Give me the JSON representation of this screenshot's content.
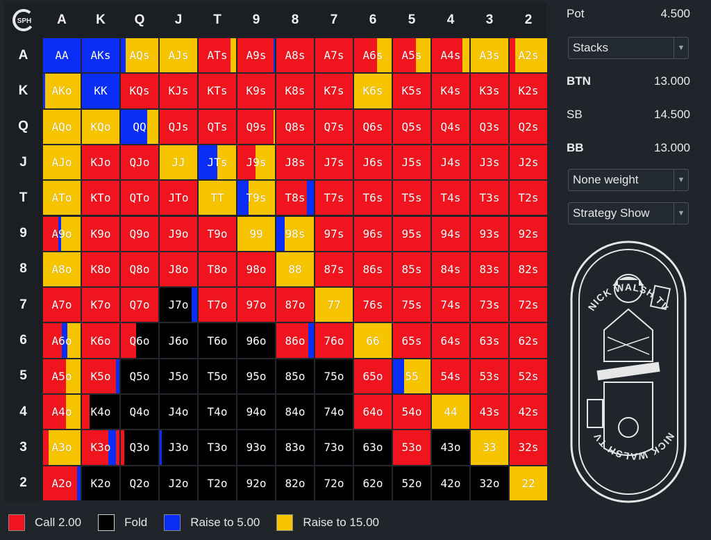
{
  "ranks": [
    "A",
    "K",
    "Q",
    "J",
    "T",
    "9",
    "8",
    "7",
    "6",
    "5",
    "4",
    "3",
    "2"
  ],
  "colors": {
    "call": "#f0141e",
    "fold": "#000000",
    "raise5": "#0a2ef5",
    "raise15": "#f7c500"
  },
  "grid": [
    [
      [
        "b",
        1
      ],
      [
        "b",
        1
      ],
      [
        "b",
        0.13,
        "y",
        0.87
      ],
      [
        "y",
        1
      ],
      [
        "r",
        0.85,
        "y",
        0.15
      ],
      [
        "r",
        0.97,
        "b",
        0.03
      ],
      [
        "r",
        1
      ],
      [
        "r",
        1
      ],
      [
        "r",
        0.62,
        "y",
        0.38
      ],
      [
        "r",
        0.62,
        "y",
        0.38
      ],
      [
        "r",
        0.82,
        "y",
        0.18
      ],
      [
        "y",
        1
      ],
      [
        "r",
        0.15,
        "y",
        0.85
      ]
    ],
    [
      [
        "b",
        0.05,
        "y",
        0.95
      ],
      [
        "b",
        1
      ],
      [
        "r",
        1
      ],
      [
        "r",
        1
      ],
      [
        "r",
        1
      ],
      [
        "r",
        1
      ],
      [
        "r",
        1
      ],
      [
        "r",
        1
      ],
      [
        "y",
        1
      ],
      [
        "r",
        1
      ],
      [
        "r",
        1
      ],
      [
        "r",
        1
      ],
      [
        "r",
        1
      ]
    ],
    [
      [
        "y",
        1
      ],
      [
        "y",
        1
      ],
      [
        "b",
        0.7,
        "y",
        0.3
      ],
      [
        "r",
        1
      ],
      [
        "r",
        1
      ],
      [
        "r",
        0.97,
        "y",
        0.03
      ],
      [
        "r",
        1
      ],
      [
        "r",
        1
      ],
      [
        "r",
        1
      ],
      [
        "r",
        1
      ],
      [
        "r",
        1
      ],
      [
        "r",
        1
      ],
      [
        "r",
        1
      ]
    ],
    [
      [
        "y",
        1
      ],
      [
        "r",
        1
      ],
      [
        "r",
        1
      ],
      [
        "y",
        1
      ],
      [
        "b",
        0.5,
        "y",
        0.5
      ],
      [
        "r",
        0.48,
        "y",
        0.52
      ],
      [
        "r",
        1
      ],
      [
        "r",
        1
      ],
      [
        "r",
        1
      ],
      [
        "r",
        1
      ],
      [
        "r",
        1
      ],
      [
        "r",
        1
      ],
      [
        "r",
        1
      ]
    ],
    [
      [
        "y",
        1
      ],
      [
        "r",
        1
      ],
      [
        "r",
        1
      ],
      [
        "r",
        1
      ],
      [
        "y",
        1
      ],
      [
        "b",
        0.3,
        "y",
        0.7
      ],
      [
        "r",
        0.82,
        "b",
        0.18
      ],
      [
        "r",
        1
      ],
      [
        "r",
        1
      ],
      [
        "r",
        1
      ],
      [
        "r",
        1
      ],
      [
        "r",
        1
      ],
      [
        "r",
        1
      ]
    ],
    [
      [
        "r",
        0.4,
        "b",
        0.08,
        "y",
        0.52
      ],
      [
        "r",
        1
      ],
      [
        "r",
        1
      ],
      [
        "r",
        1
      ],
      [
        "r",
        1
      ],
      [
        "y",
        1
      ],
      [
        "b",
        0.22,
        "y",
        0.78
      ],
      [
        "r",
        1
      ],
      [
        "r",
        1
      ],
      [
        "r",
        1
      ],
      [
        "r",
        1
      ],
      [
        "r",
        1
      ],
      [
        "r",
        1
      ]
    ],
    [
      [
        "y",
        1
      ],
      [
        "r",
        1
      ],
      [
        "r",
        1
      ],
      [
        "r",
        1
      ],
      [
        "r",
        1
      ],
      [
        "r",
        1
      ],
      [
        "y",
        1
      ],
      [
        "r",
        1
      ],
      [
        "r",
        1
      ],
      [
        "r",
        1
      ],
      [
        "r",
        1
      ],
      [
        "r",
        1
      ],
      [
        "r",
        1
      ]
    ],
    [
      [
        "r",
        1
      ],
      [
        "r",
        1
      ],
      [
        "r",
        1
      ],
      [
        "k",
        0.85,
        "b",
        0.15
      ],
      [
        "r",
        1
      ],
      [
        "r",
        1
      ],
      [
        "r",
        1
      ],
      [
        "y",
        1
      ],
      [
        "r",
        1
      ],
      [
        "r",
        1
      ],
      [
        "r",
        1
      ],
      [
        "r",
        1
      ],
      [
        "r",
        1
      ]
    ],
    [
      [
        "r",
        0.5,
        "b",
        0.15,
        "y",
        0.35
      ],
      [
        "r",
        1
      ],
      [
        "r",
        0.4,
        "k",
        0.6
      ],
      [
        "k",
        1
      ],
      [
        "k",
        1
      ],
      [
        "k",
        1
      ],
      [
        "r",
        0.85,
        "b",
        0.15
      ],
      [
        "r",
        1
      ],
      [
        "y",
        1
      ],
      [
        "r",
        1
      ],
      [
        "r",
        1
      ],
      [
        "r",
        1
      ],
      [
        "r",
        1
      ]
    ],
    [
      [
        "r",
        0.62,
        "y",
        0.38
      ],
      [
        "r",
        0.9,
        "b",
        0.1
      ],
      [
        "k",
        1
      ],
      [
        "k",
        1
      ],
      [
        "k",
        1
      ],
      [
        "k",
        1
      ],
      [
        "k",
        1
      ],
      [
        "k",
        1
      ],
      [
        "r",
        1
      ],
      [
        "b",
        0.3,
        "y",
        0.7
      ],
      [
        "r",
        1
      ],
      [
        "r",
        1
      ],
      [
        "r",
        1
      ]
    ],
    [
      [
        "r",
        0.62,
        "y",
        0.38
      ],
      [
        "r",
        0.2,
        "k",
        0.8
      ],
      [
        "k",
        1
      ],
      [
        "k",
        1
      ],
      [
        "k",
        1
      ],
      [
        "k",
        1
      ],
      [
        "k",
        1
      ],
      [
        "k",
        1
      ],
      [
        "r",
        1
      ],
      [
        "r",
        1
      ],
      [
        "y",
        1
      ],
      [
        "r",
        1
      ],
      [
        "r",
        1
      ]
    ],
    [
      [
        "r",
        0.15,
        "y",
        0.85
      ],
      [
        "r",
        0.7,
        "b",
        0.2,
        "r",
        0.1
      ],
      [
        "r",
        0.1,
        "k",
        0.9
      ],
      [
        "b",
        0.05,
        "k",
        0.95
      ],
      [
        "k",
        1
      ],
      [
        "k",
        1
      ],
      [
        "k",
        1
      ],
      [
        "k",
        1
      ],
      [
        "k",
        1
      ],
      [
        "r",
        1
      ],
      [
        "k",
        1
      ],
      [
        "y",
        1
      ],
      [
        "r",
        1
      ]
    ],
    [
      [
        "r",
        0.9,
        "b",
        0.1
      ],
      [
        "k",
        1
      ],
      [
        "k",
        1
      ],
      [
        "k",
        1
      ],
      [
        "k",
        1
      ],
      [
        "k",
        1
      ],
      [
        "k",
        1
      ],
      [
        "k",
        1
      ],
      [
        "k",
        1
      ],
      [
        "k",
        1
      ],
      [
        "k",
        1
      ],
      [
        "k",
        1
      ],
      [
        "y",
        1
      ]
    ]
  ],
  "legend": [
    {
      "key": "r",
      "label": "Call 2.00"
    },
    {
      "key": "k",
      "label": "Fold"
    },
    {
      "key": "b",
      "label": "Raise to 5.00"
    },
    {
      "key": "y",
      "label": "Raise to 15.00"
    }
  ],
  "panel": {
    "pot_label": "Pot",
    "pot_value": "4.500",
    "stacks_select": "Stacks",
    "btn_label": "BTN",
    "btn_value": "13.000",
    "sb_label": "SB",
    "sb_value": "14.500",
    "bb_label": "BB",
    "bb_value": "13.000",
    "weight_select": "None weight",
    "strategy_select": "Strategy Show"
  },
  "logo_text": "SPH",
  "brand": {
    "top_text": "NICK WALSH TV",
    "bottom_text": "NICK WALSH TV"
  }
}
